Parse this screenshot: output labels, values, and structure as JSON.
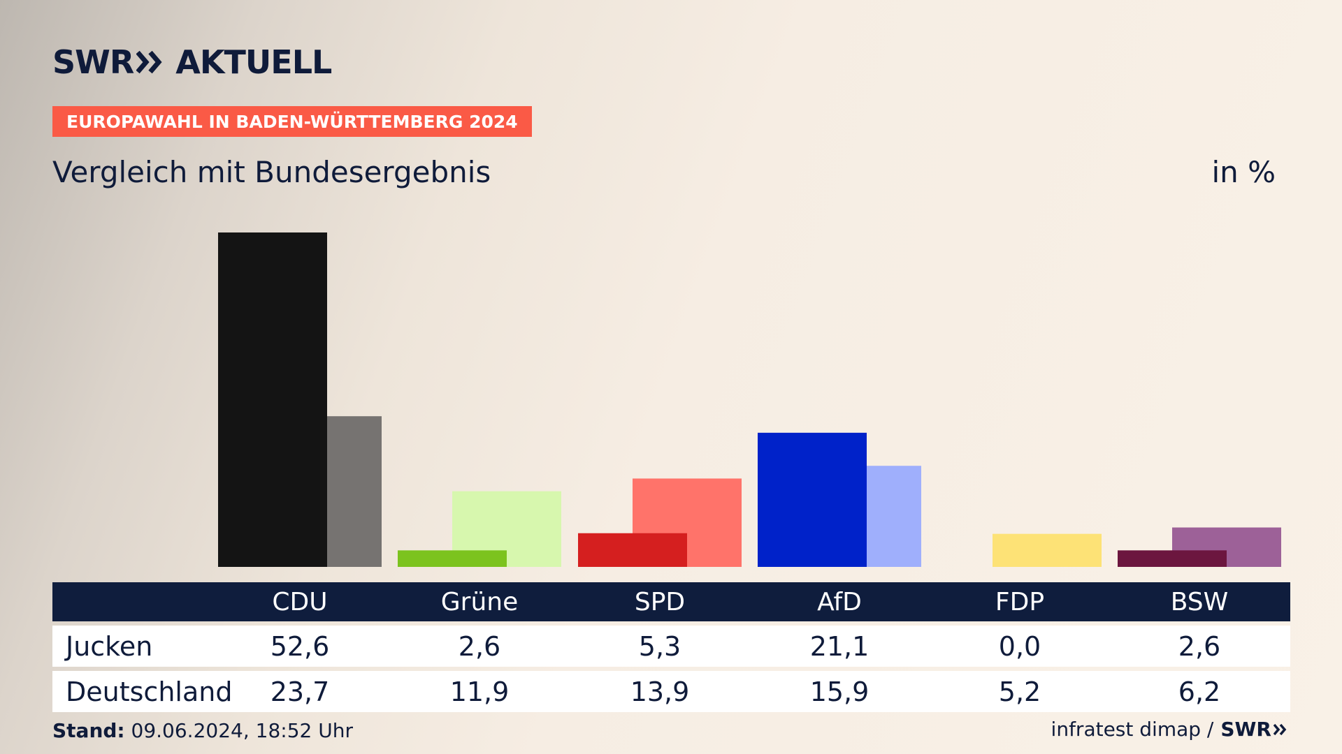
{
  "header": {
    "logo_text_left": "SWR",
    "logo_text_right": "AKTUELL",
    "tag": "EUROPAWAHL IN BADEN-WÜRTTEMBERG 2024",
    "subtitle": "Vergleich mit Bundesergebnis",
    "unit": "in %"
  },
  "chart_data": {
    "type": "bar",
    "categories": [
      "CDU",
      "Grüne",
      "SPD",
      "AfD",
      "FDP",
      "BSW"
    ],
    "series": [
      {
        "name": "Jucken",
        "values": [
          52.6,
          2.6,
          5.3,
          21.1,
          0.0,
          2.6
        ],
        "colors": [
          "#141414",
          "#7cc31e",
          "#d51f1f",
          "#0022c9",
          "#f3d23c",
          "#6c163f"
        ]
      },
      {
        "name": "Deutschland",
        "values": [
          23.7,
          11.9,
          13.9,
          15.9,
          5.2,
          6.2
        ],
        "colors": [
          "#767371",
          "#d7f7ae",
          "#ff736a",
          "#9faffc",
          "#fde276",
          "#9d6198"
        ]
      }
    ],
    "ylim": [
      0,
      55
    ]
  },
  "table": {
    "headers": [
      "CDU",
      "Grüne",
      "SPD",
      "AfD",
      "FDP",
      "BSW"
    ],
    "rows": [
      {
        "label": "Jucken",
        "values": [
          "52,6",
          "2,6",
          "5,3",
          "21,1",
          "0,0",
          "2,6"
        ]
      },
      {
        "label": "Deutschland",
        "values": [
          "23,7",
          "11,9",
          "13,9",
          "15,9",
          "5,2",
          "6,2"
        ]
      }
    ]
  },
  "footer": {
    "stand_label": "Stand:",
    "stand_value": " 09.06.2024, 18:52 Uhr",
    "source": "infratest dimap /",
    "source_logo": "SWR"
  }
}
